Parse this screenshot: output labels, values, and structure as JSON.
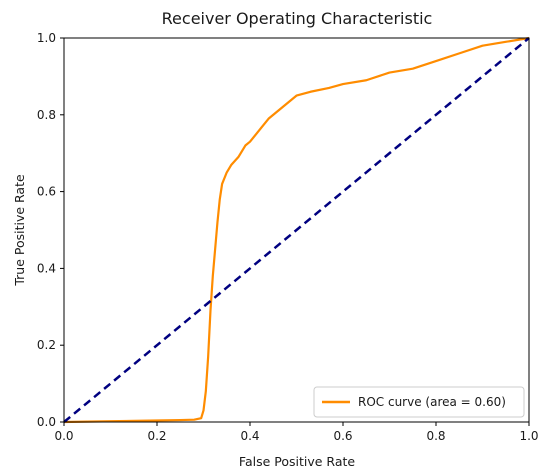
{
  "chart_data": {
    "type": "line",
    "title": "Receiver Operating Characteristic",
    "xlabel": "False Positive Rate",
    "ylabel": "True Positive Rate",
    "xlim": [
      0.0,
      1.0
    ],
    "ylim": [
      0.0,
      1.0
    ],
    "xticks": [
      "0.0",
      "0.2",
      "0.4",
      "0.6",
      "0.8",
      "1.0"
    ],
    "yticks": [
      "0.0",
      "0.2",
      "0.4",
      "0.6",
      "0.8",
      "1.0"
    ],
    "grid": false,
    "legend_position": "lower right",
    "series": [
      {
        "name": "ROC curve (area = 0.60)",
        "color": "#ff8c00",
        "style": "solid",
        "x": [
          0.0,
          0.1,
          0.2,
          0.25,
          0.28,
          0.295,
          0.3,
          0.305,
          0.31,
          0.315,
          0.32,
          0.325,
          0.33,
          0.335,
          0.34,
          0.35,
          0.36,
          0.375,
          0.39,
          0.4,
          0.42,
          0.44,
          0.47,
          0.5,
          0.53,
          0.57,
          0.6,
          0.65,
          0.7,
          0.75,
          0.8,
          0.85,
          0.9,
          0.95,
          1.0
        ],
        "y": [
          0.0,
          0.002,
          0.004,
          0.005,
          0.006,
          0.01,
          0.03,
          0.08,
          0.17,
          0.29,
          0.38,
          0.45,
          0.52,
          0.58,
          0.62,
          0.65,
          0.67,
          0.69,
          0.72,
          0.73,
          0.76,
          0.79,
          0.82,
          0.85,
          0.86,
          0.87,
          0.88,
          0.89,
          0.91,
          0.92,
          0.94,
          0.96,
          0.98,
          0.99,
          1.0
        ]
      },
      {
        "name": "",
        "color": "#000080",
        "style": "dashed",
        "x": [
          0.0,
          1.0
        ],
        "y": [
          0.0,
          1.0
        ]
      }
    ]
  }
}
